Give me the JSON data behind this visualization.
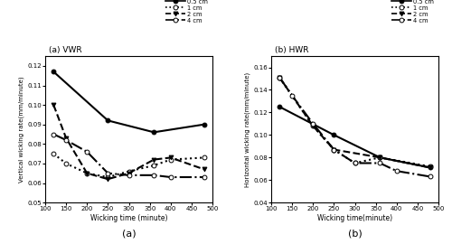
{
  "vwr": {
    "title": "(a) VWR",
    "xlabel": "Wicking time (minute)",
    "ylabel": "Vertical wicking rate(mm/minute)",
    "xlim": [
      100,
      500
    ],
    "ylim": [
      0.05,
      0.125
    ],
    "yticks": [
      0.05,
      0.06,
      0.07,
      0.08,
      0.09,
      0.1,
      0.11,
      0.12
    ],
    "xticks": [
      100,
      150,
      200,
      250,
      300,
      350,
      400,
      450,
      500
    ],
    "series": [
      {
        "label": "0.5 cm",
        "x": [
          120,
          250,
          360,
          480
        ],
        "y": [
          0.117,
          0.092,
          0.086,
          0.09
        ],
        "linestyle": "-",
        "marker": "o",
        "markerfacecolor": "black",
        "linewidth": 1.5
      },
      {
        "label": "1 cm",
        "x": [
          120,
          150,
          200,
          250,
          300,
          360,
          400,
          480
        ],
        "y": [
          0.075,
          0.07,
          0.065,
          0.063,
          0.066,
          0.069,
          0.072,
          0.073
        ],
        "linestyle": ":",
        "marker": "o",
        "markerfacecolor": "white",
        "linewidth": 1.5
      },
      {
        "label": "2 cm",
        "x": [
          120,
          150,
          200,
          250,
          300,
          360,
          400,
          480
        ],
        "y": [
          0.1,
          0.083,
          0.065,
          0.062,
          0.065,
          0.072,
          0.073,
          0.067
        ],
        "linestyle": "--",
        "marker": "v",
        "markerfacecolor": "black",
        "linewidth": 1.5
      },
      {
        "label": "4 cm",
        "x": [
          120,
          150,
          200,
          250,
          300,
          360,
          400,
          480
        ],
        "y": [
          0.085,
          0.082,
          0.076,
          0.065,
          0.064,
          0.064,
          0.063,
          0.063
        ],
        "linestyle": "-.",
        "marker": "o",
        "markerfacecolor": "white",
        "linewidth": 1.5
      }
    ],
    "legend_styles": [
      {
        "ls": "-",
        "mk": "o",
        "mfc": "black"
      },
      {
        "ls": ":",
        "mk": "o",
        "mfc": "white"
      },
      {
        "ls": "--",
        "mk": "v",
        "mfc": "black"
      },
      {
        "ls": "-.",
        "mk": "o",
        "mfc": "white"
      }
    ]
  },
  "hwr": {
    "title": "(b) HWR",
    "xlabel": "Wicking time(minute)",
    "ylabel": "Horizontal wicking rate(mm/minute)",
    "xlim": [
      100,
      500
    ],
    "ylim": [
      0.04,
      0.17
    ],
    "yticks": [
      0.04,
      0.06,
      0.08,
      0.1,
      0.12,
      0.14,
      0.16
    ],
    "xticks": [
      100,
      150,
      200,
      250,
      300,
      350,
      400,
      450,
      500
    ],
    "series": [
      {
        "label": "0.5 cm",
        "x": [
          120,
          250,
          360,
          480
        ],
        "y": [
          0.125,
          0.1,
          0.08,
          0.071
        ],
        "linestyle": "-",
        "marker": "o",
        "markerfacecolor": "black",
        "linewidth": 1.5
      },
      {
        "label": "1 cm",
        "x": [
          120,
          200,
          250,
          300,
          360,
          480
        ],
        "y": [
          0.151,
          0.108,
          0.087,
          0.075,
          0.08,
          0.072
        ],
        "linestyle": ":",
        "marker": "o",
        "markerfacecolor": "white",
        "linewidth": 1.5
      },
      {
        "label": "2 cm",
        "x": [
          120,
          200,
          250,
          360,
          480
        ],
        "y": [
          0.151,
          0.108,
          0.087,
          0.08,
          0.071
        ],
        "linestyle": "--",
        "marker": "v",
        "markerfacecolor": "black",
        "linewidth": 1.5
      },
      {
        "label": "4 cm",
        "x": [
          120,
          150,
          200,
          250,
          300,
          360,
          400,
          480
        ],
        "y": [
          0.151,
          0.135,
          0.11,
          0.087,
          0.075,
          0.075,
          0.068,
          0.063
        ],
        "linestyle": "-.",
        "marker": "o",
        "markerfacecolor": "white",
        "linewidth": 1.5
      }
    ],
    "legend_styles": [
      {
        "ls": "-",
        "mk": "o",
        "mfc": "black"
      },
      {
        "ls": ":",
        "mk": "o",
        "mfc": "white"
      },
      {
        "ls": "--",
        "mk": "v",
        "mfc": "black"
      },
      {
        "ls": "-.",
        "mk": "o",
        "mfc": "white"
      }
    ]
  },
  "legend_labels": [
    "0.5 cm",
    "1 cm",
    "2 cm",
    "4 cm"
  ],
  "bottom_labels": [
    "(a)",
    "(b)"
  ],
  "background_color": "#ffffff"
}
